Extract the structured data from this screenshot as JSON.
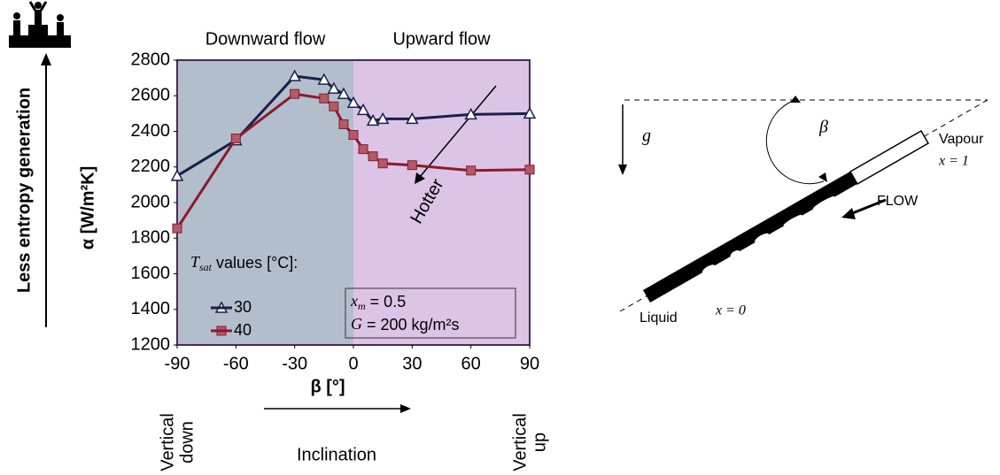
{
  "chart_data": {
    "type": "line",
    "x": [
      -90,
      -60,
      -30,
      -15,
      -10,
      -5,
      0,
      5,
      10,
      15,
      30,
      60,
      90
    ],
    "series": [
      {
        "name": "30",
        "color": "#1a1f4b",
        "marker": "triangle",
        "values": [
          2150,
          2350,
          2710,
          2690,
          2640,
          2610,
          2560,
          2520,
          2460,
          2470,
          2470,
          2495,
          2500
        ]
      },
      {
        "name": "40",
        "color": "#8b1a2b",
        "marker": "square",
        "values": [
          1855,
          2360,
          2610,
          2585,
          2540,
          2440,
          2380,
          2300,
          2260,
          2220,
          2210,
          2180,
          2185
        ]
      }
    ],
    "xlim": [
      -90,
      90
    ],
    "xticks": [
      -90,
      -60,
      -30,
      0,
      30,
      60,
      90
    ],
    "ylim": [
      1200,
      2800
    ],
    "yticks": [
      1200,
      1400,
      1600,
      1800,
      2000,
      2200,
      2400,
      2600,
      2800
    ],
    "x_label": "β [°]",
    "y_label": "α [W/m²K]",
    "region_labels": [
      "Downward flow",
      "Upward flow"
    ],
    "region_colors": [
      "#b3becd",
      "#dcc4e6"
    ],
    "legend_title": {
      "symbol": "T",
      "subscript": "sat",
      "text": " values [°C]:"
    },
    "annotation": [
      {
        "symbol": "x",
        "subscript": "m",
        "text": " = 0.5"
      },
      {
        "symbol": "G",
        "text": " = 200 kg/m²s"
      }
    ],
    "side_label": "Less entropy generation",
    "x_end_labels": [
      [
        "Vertical",
        "down"
      ],
      [
        "Vertical",
        "up"
      ]
    ],
    "x_arrow_label": "Inclination",
    "trend_label": "Hotter"
  },
  "diagram": {
    "gravity": "g",
    "angle": "β",
    "top_end": [
      "Vapour",
      "x = 1"
    ],
    "flow": "FLOW",
    "bottom_end": [
      "Liquid",
      "x = 0"
    ]
  }
}
